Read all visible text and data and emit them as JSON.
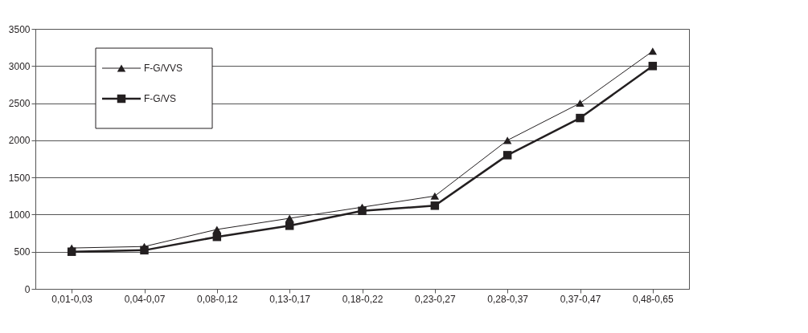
{
  "chart_data": {
    "type": "line",
    "categories": [
      "0,01-0,03",
      "0,04-0,07",
      "0,08-0,12",
      "0,13-0,17",
      "0,18-0,22",
      "0,23-0,27",
      "0,28-0,37",
      "0,37-0,47",
      "0,48-0,65"
    ],
    "series": [
      {
        "name": "F-G/VVS",
        "color": "#231f20",
        "marker": "triangle",
        "values": [
          550,
          570,
          800,
          950,
          1100,
          1250,
          2000,
          2500,
          3200
        ]
      },
      {
        "name": "F-G/VS",
        "color": "#231f20",
        "marker": "square",
        "values": [
          500,
          520,
          700,
          850,
          1050,
          1120,
          1800,
          2300,
          3000
        ]
      }
    ],
    "ylim": [
      0,
      3500
    ],
    "yticks": [
      0,
      500,
      1000,
      1500,
      2000,
      2500,
      3000,
      3500
    ],
    "grid": "y",
    "legend": "top left"
  }
}
